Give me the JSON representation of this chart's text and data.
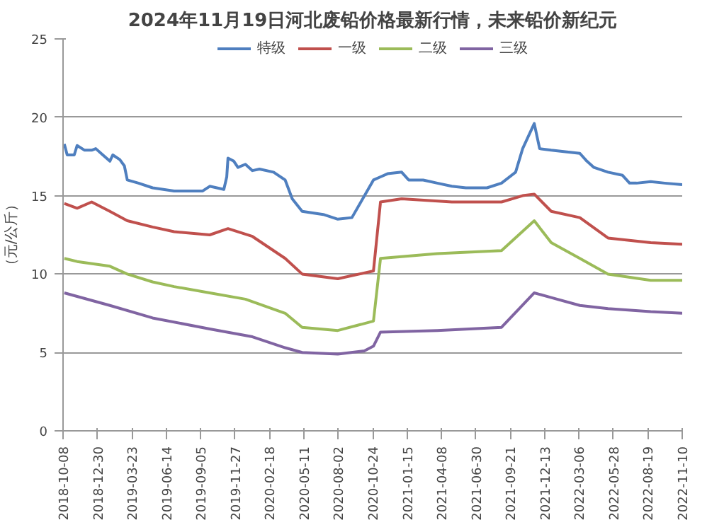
{
  "chart_data": {
    "type": "line",
    "title": "2024年11月19日河北废铅价格最新行情，未来铅价新纪元",
    "ylabel": "（元/公斤）",
    "xlim": [
      "2018-10-08",
      "2022-11-10"
    ],
    "xticks": [
      "2018-10-08",
      "2018-12-30",
      "2019-03-23",
      "2019-06-14",
      "2019-09-05",
      "2019-11-27",
      "2020-02-18",
      "2020-05-11",
      "2020-08-02",
      "2020-10-24",
      "2021-01-15",
      "2021-04-08",
      "2021-06-30",
      "2021-09-21",
      "2021-12-13",
      "2022-03-06",
      "2022-05-28",
      "2022-08-19",
      "2022-11-10"
    ],
    "ylim": [
      0,
      25
    ],
    "yticks": [
      0,
      5,
      10,
      15,
      20,
      25
    ],
    "grid": "y",
    "legend": "top",
    "series": [
      {
        "name": "特级",
        "color": "#4f7fbf",
        "x": [
          "2018-10-11",
          "2018-10-18",
          "2018-11-04",
          "2018-11-11",
          "2018-11-29",
          "2018-12-16",
          "2018-12-26",
          "2019-01-12",
          "2019-01-29",
          "2019-02-05",
          "2019-02-22",
          "2019-03-05",
          "2019-03-12",
          "2019-04-08",
          "2019-05-12",
          "2019-07-03",
          "2019-09-10",
          "2019-09-27",
          "2019-10-31",
          "2019-11-07",
          "2019-11-10",
          "2019-11-24",
          "2019-12-04",
          "2019-12-22",
          "2020-01-08",
          "2020-01-25",
          "2020-02-28",
          "2020-03-27",
          "2020-04-13",
          "2020-05-07",
          "2020-06-27",
          "2020-08-01",
          "2020-09-04",
          "2020-10-26",
          "2020-11-12",
          "2020-11-29",
          "2021-01-02",
          "2021-01-19",
          "2021-02-23",
          "2021-03-29",
          "2021-05-03",
          "2021-06-06",
          "2021-07-27",
          "2021-08-31",
          "2021-10-04",
          "2021-10-21",
          "2021-11-18",
          "2021-12-01",
          "2021-12-29",
          "2022-02-01",
          "2022-03-08",
          "2022-03-25",
          "2022-04-11",
          "2022-05-15",
          "2022-06-19",
          "2022-07-06",
          "2022-07-23",
          "2022-08-26",
          "2022-09-29",
          "2022-11-10"
        ],
        "values": [
          18.3,
          17.6,
          17.6,
          18.2,
          17.9,
          17.9,
          18.0,
          17.6,
          17.2,
          17.6,
          17.3,
          16.9,
          16.0,
          15.8,
          15.5,
          15.3,
          15.3,
          15.6,
          15.4,
          16.2,
          17.4,
          17.2,
          16.8,
          17.0,
          16.6,
          16.7,
          16.5,
          16.0,
          14.8,
          14.0,
          13.8,
          13.5,
          13.6,
          16.0,
          16.2,
          16.4,
          16.5,
          16.0,
          16.0,
          15.8,
          15.6,
          15.5,
          15.5,
          15.8,
          16.5,
          18.0,
          19.6,
          18.0,
          17.9,
          17.8,
          17.7,
          17.2,
          16.8,
          16.5,
          16.3,
          15.8,
          15.8,
          15.9,
          15.8,
          15.7
        ]
      },
      {
        "name": "一级",
        "color": "#c0504d",
        "x": [
          "2018-10-11",
          "2018-11-11",
          "2018-12-16",
          "2019-01-29",
          "2019-03-12",
          "2019-05-12",
          "2019-07-03",
          "2019-09-27",
          "2019-11-10",
          "2020-01-08",
          "2020-03-27",
          "2020-05-07",
          "2020-08-01",
          "2020-10-26",
          "2020-11-12",
          "2021-01-02",
          "2021-05-03",
          "2021-08-31",
          "2021-10-21",
          "2021-11-18",
          "2021-12-29",
          "2022-03-08",
          "2022-05-15",
          "2022-08-26",
          "2022-11-10"
        ],
        "values": [
          14.5,
          14.2,
          14.6,
          14.0,
          13.4,
          13.0,
          12.7,
          12.5,
          12.9,
          12.4,
          11.0,
          10.0,
          9.7,
          10.2,
          14.6,
          14.8,
          14.6,
          14.6,
          15.0,
          15.1,
          14.0,
          13.6,
          12.3,
          12.0,
          11.9
        ]
      },
      {
        "name": "二级",
        "color": "#9bbb59",
        "x": [
          "2018-10-11",
          "2018-11-11",
          "2019-01-29",
          "2019-03-12",
          "2019-05-12",
          "2019-07-03",
          "2019-09-27",
          "2019-12-22",
          "2020-03-27",
          "2020-05-07",
          "2020-08-01",
          "2020-10-26",
          "2020-11-12",
          "2021-03-29",
          "2021-08-31",
          "2021-11-18",
          "2021-12-29",
          "2022-03-08",
          "2022-05-15",
          "2022-08-26",
          "2022-11-10"
        ],
        "values": [
          11.0,
          10.8,
          10.5,
          10.0,
          9.5,
          9.2,
          8.8,
          8.4,
          7.5,
          6.6,
          6.4,
          7.0,
          11.0,
          11.3,
          11.5,
          13.4,
          12.0,
          11.0,
          10.0,
          9.6,
          9.6
        ]
      },
      {
        "name": "三级",
        "color": "#8064a2",
        "x": [
          "2018-10-11",
          "2019-01-29",
          "2019-05-12",
          "2019-09-27",
          "2020-01-08",
          "2020-03-27",
          "2020-05-07",
          "2020-08-01",
          "2020-10-04",
          "2020-10-26",
          "2020-11-12",
          "2021-03-29",
          "2021-08-31",
          "2021-11-18",
          "2021-12-29",
          "2022-03-08",
          "2022-05-15",
          "2022-08-26",
          "2022-11-10"
        ],
        "values": [
          8.8,
          8.0,
          7.2,
          6.5,
          6.0,
          5.3,
          5.0,
          4.9,
          5.1,
          5.4,
          6.3,
          6.4,
          6.6,
          8.8,
          8.5,
          8.0,
          7.8,
          7.6,
          7.5
        ]
      }
    ]
  }
}
